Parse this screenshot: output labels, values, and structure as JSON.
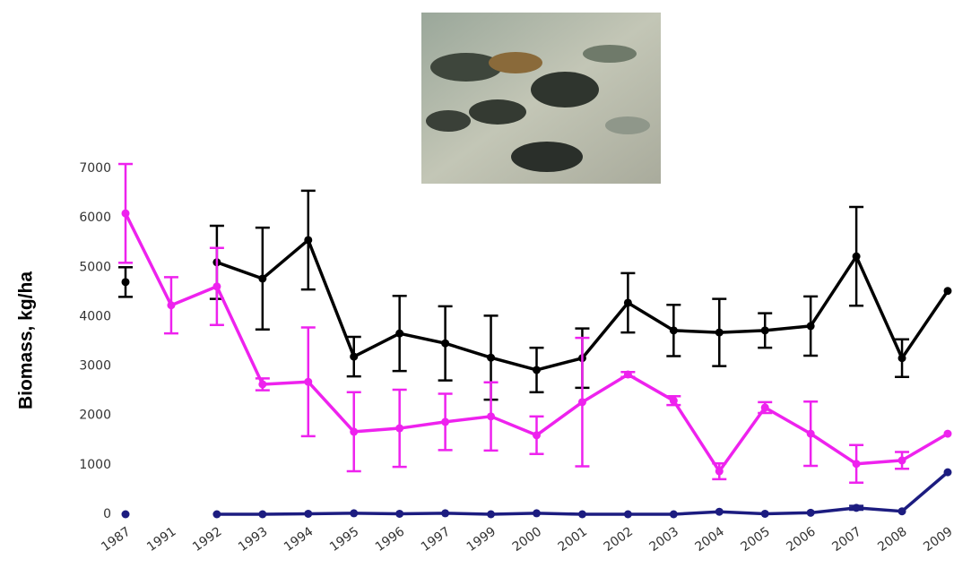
{
  "chart_data": {
    "type": "line",
    "y_label": "Biomass, kg/ha",
    "categories": [
      "1987",
      "1991",
      "1992",
      "1993",
      "1994",
      "1995",
      "1996",
      "1997",
      "1999",
      "2000",
      "2001",
      "2002",
      "2003",
      "2004",
      "2005",
      "2006",
      "2007",
      "2008",
      "2009"
    ],
    "ylim": [
      0,
      7000
    ],
    "yticks": [
      0,
      1000,
      2000,
      3000,
      4000,
      5000,
      6000,
      7000
    ],
    "grid": false,
    "series": [
      {
        "color": "#000000",
        "values": [
          4700,
          null,
          5100,
          4770,
          5550,
          3190,
          3660,
          3460,
          3170,
          2920,
          3160,
          4280,
          3720,
          3680,
          3720,
          3810,
          5220,
          3160,
          4520
        ],
        "errors": [
          300,
          null,
          740,
          1030,
          1000,
          400,
          760,
          750,
          850,
          450,
          600,
          600,
          520,
          680,
          350,
          600,
          1000,
          380,
          null
        ]
      },
      {
        "color": "#ee22ee",
        "values": [
          6090,
          4230,
          4610,
          2630,
          2680,
          1670,
          1740,
          1870,
          1980,
          1600,
          2270,
          2830,
          2300,
          870,
          2160,
          1630,
          1020,
          1090,
          1630
        ],
        "errors": [
          1000,
          570,
          780,
          120,
          1100,
          800,
          780,
          570,
          690,
          380,
          1300,
          50,
          90,
          160,
          110,
          650,
          380,
          170,
          null
        ]
      },
      {
        "color": "#1c1c80",
        "values": [
          0,
          null,
          0,
          0,
          10,
          20,
          10,
          20,
          0,
          20,
          0,
          0,
          0,
          50,
          10,
          30,
          130,
          60,
          850
        ],
        "errors": [
          null,
          null,
          null,
          null,
          null,
          null,
          null,
          null,
          null,
          null,
          null,
          null,
          null,
          null,
          null,
          null,
          40,
          null,
          null
        ]
      }
    ]
  }
}
